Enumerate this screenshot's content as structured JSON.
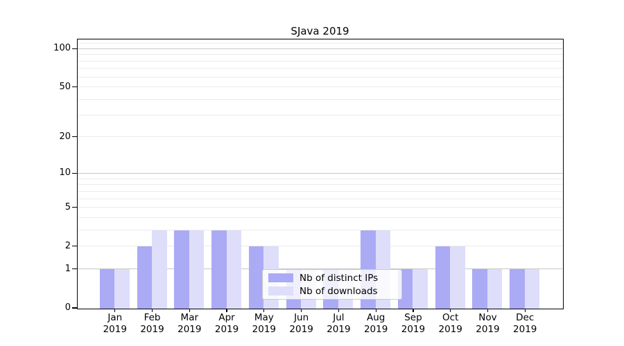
{
  "title": "SJava 2019",
  "chart_data": {
    "type": "bar",
    "categories": [
      "Jan 2019",
      "Feb 2019",
      "Mar 2019",
      "Apr 2019",
      "May 2019",
      "Jun 2019",
      "Jul 2019",
      "Aug 2019",
      "Sep 2019",
      "Oct 2019",
      "Nov 2019",
      "Dec 2019"
    ],
    "series": [
      {
        "name": "Nb of distinct IPs",
        "color": "#aaaaf5",
        "values": [
          1,
          2,
          3,
          3,
          2,
          1,
          1,
          3,
          1,
          2,
          1,
          1
        ]
      },
      {
        "name": "Nb of downloads",
        "color": "#dedefa",
        "values": [
          1,
          3,
          3,
          3,
          2,
          1,
          1,
          3,
          1,
          2,
          1,
          1
        ]
      }
    ],
    "title": "SJava 2019",
    "xlabel": "",
    "ylabel": "",
    "yscale": "log1p",
    "ylim": [
      0,
      118
    ],
    "yticks": [
      0,
      1,
      2,
      5,
      10,
      20,
      50,
      100
    ],
    "grid": {
      "on": true,
      "major": [
        1,
        10,
        100
      ],
      "minor": [
        2,
        3,
        4,
        5,
        6,
        7,
        8,
        9,
        20,
        30,
        40,
        50,
        60,
        70,
        80,
        90,
        110
      ]
    },
    "legend_position": "lower center"
  }
}
